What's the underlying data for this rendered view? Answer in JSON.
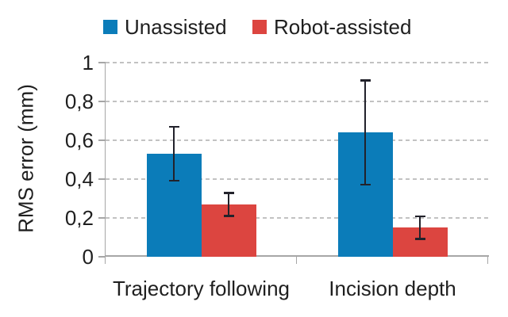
{
  "chart_data": {
    "type": "bar",
    "title": "",
    "ylabel": "RMS error (mm)",
    "ylim": [
      0,
      1
    ],
    "ytick_values": [
      0,
      0.2,
      0.4,
      0.6,
      0.8,
      1
    ],
    "ytick_labels": [
      "0",
      "0,2",
      "0,4",
      "0,6",
      "0,8",
      "1"
    ],
    "decimal_separator": ",",
    "categories": [
      "Trajectory following",
      "Incision depth"
    ],
    "series": [
      {
        "name": "Unassisted",
        "color": "#0b7cb9",
        "values": [
          0.53,
          0.64
        ],
        "error_low": [
          0.39,
          0.37
        ],
        "error_high": [
          0.67,
          0.91
        ]
      },
      {
        "name": "Robot-assisted",
        "color": "#dc4540",
        "values": [
          0.27,
          0.15
        ],
        "error_low": [
          0.21,
          0.09
        ],
        "error_high": [
          0.33,
          0.21
        ]
      }
    ],
    "grid": "horizontal-dashed",
    "legend_position": "top-center",
    "colors": {
      "grid": "#c2c2c2",
      "axis": "#a6a6a6",
      "text": "#1f1f1f",
      "error_bar": "#22222b",
      "background": "#ffffff"
    }
  }
}
